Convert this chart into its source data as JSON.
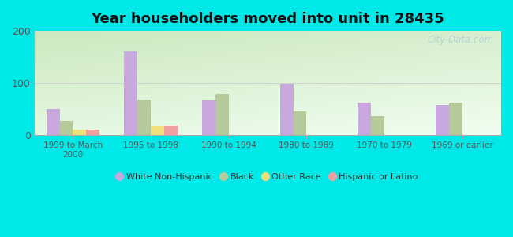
{
  "title": "Year householders moved into unit in 28435",
  "categories": [
    "1999 to March\n2000",
    "1995 to 1998",
    "1990 to 1994",
    "1980 to 1989",
    "1970 to 1979",
    "1969 or earlier"
  ],
  "series": {
    "White Non-Hispanic": [
      50,
      160,
      67,
      98,
      62,
      57
    ],
    "Black": [
      27,
      68,
      78,
      45,
      37,
      62
    ],
    "Other Race": [
      10,
      17,
      0,
      0,
      0,
      0
    ],
    "Hispanic or Latino": [
      10,
      18,
      0,
      0,
      0,
      0
    ]
  },
  "colors": {
    "White Non-Hispanic": "#c9a8e0",
    "Black": "#b5c99a",
    "Other Race": "#efe07a",
    "Hispanic or Latino": "#f0a0a0"
  },
  "ylim": [
    0,
    200
  ],
  "yticks": [
    0,
    100,
    200
  ],
  "bg_top_left": "#cce8c0",
  "bg_bottom_right": "#f0fff0",
  "outer_bg": "#00e8e8",
  "watermark": "City-Data.com",
  "bar_width": 0.17,
  "title_fontsize": 13
}
